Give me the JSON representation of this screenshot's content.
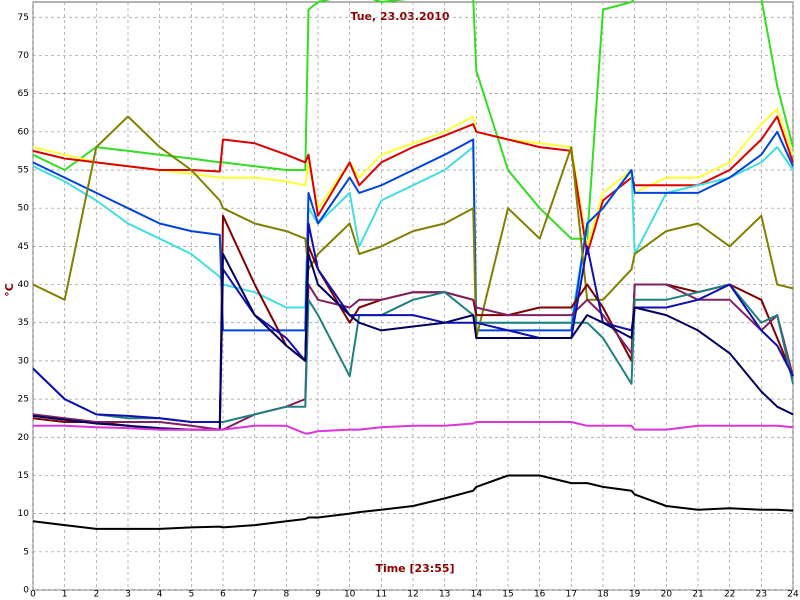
{
  "chart_data": {
    "type": "line",
    "title": "Tue, 23.03.2010",
    "x_label": "Time [23:55]",
    "y_label": "°C",
    "xlim": [
      0,
      24
    ],
    "ylim": [
      0,
      77
    ],
    "grid": true,
    "xticks": [
      0,
      1,
      2,
      3,
      4,
      5,
      6,
      7,
      8,
      9,
      10,
      11,
      12,
      13,
      14,
      15,
      16,
      17,
      18,
      19,
      20,
      21,
      22,
      23,
      24
    ],
    "yticks": [
      0,
      5,
      10,
      15,
      20,
      25,
      30,
      35,
      40,
      45,
      50,
      55,
      60,
      65,
      70,
      75
    ],
    "x": [
      0,
      1,
      2,
      3,
      4,
      5,
      5.9,
      6,
      7,
      8,
      8.6,
      8.7,
      9,
      10,
      10.3,
      11,
      12,
      13,
      13.9,
      14,
      15,
      16,
      17,
      17.5,
      18,
      18.9,
      19,
      20,
      21,
      22,
      23,
      23.5,
      24
    ],
    "series": [
      {
        "color": "#33dd22",
        "values": [
          57,
          55,
          58,
          57.5,
          57,
          56.5,
          56,
          56,
          55.5,
          55,
          55,
          76,
          77,
          78,
          78,
          77,
          77.5,
          77.5,
          77.5,
          68,
          55,
          50,
          46,
          46,
          76,
          77,
          77.5,
          77.5,
          77.5,
          77.5,
          77.5,
          66,
          58
        ]
      },
      {
        "color": "#ffff33",
        "values": [
          58,
          57,
          56,
          55.5,
          55,
          54.5,
          54,
          54,
          54,
          53.5,
          53,
          56,
          50,
          56,
          54,
          57,
          58.5,
          60,
          62,
          60,
          59,
          58.5,
          58,
          45,
          52,
          55,
          52,
          54,
          54,
          56,
          61,
          63,
          57
        ]
      },
      {
        "color": "#dd0000",
        "values": [
          57.5,
          56.5,
          56,
          55.5,
          55,
          55,
          54.8,
          59,
          58.5,
          57,
          56,
          57,
          49,
          56,
          53,
          56,
          58,
          59.5,
          61,
          60,
          59,
          58,
          57.5,
          44,
          51,
          54,
          53,
          53,
          53,
          55,
          59,
          62,
          56
        ]
      },
      {
        "color": "#44dddd",
        "values": [
          55.5,
          53.5,
          51,
          48,
          46,
          44,
          41,
          40,
          39,
          37,
          37,
          50,
          48,
          52,
          45,
          51,
          53,
          55,
          58,
          35,
          35,
          35,
          35,
          48,
          50,
          55,
          44,
          52,
          53,
          54,
          56,
          58,
          55
        ]
      },
      {
        "color": "#0044dd",
        "values": [
          56,
          54,
          52,
          50,
          48,
          47,
          46.5,
          34,
          34,
          34,
          34,
          52,
          48,
          54,
          52,
          53,
          55,
          57,
          59,
          34,
          34,
          34,
          34,
          48,
          50,
          55,
          52,
          52,
          52,
          54,
          57,
          60,
          55.5
        ]
      },
      {
        "color": "#808000",
        "values": [
          40,
          38,
          58,
          62,
          58,
          55,
          51,
          50,
          48,
          47,
          46,
          42,
          44,
          48,
          44,
          45,
          47,
          48,
          50,
          33,
          50,
          46,
          58,
          38,
          38,
          42,
          44,
          47,
          48,
          45,
          49,
          40,
          39.5
        ]
      },
      {
        "color": "#800000",
        "values": [
          22.5,
          22,
          22,
          21.5,
          21,
          21,
          21,
          49,
          40,
          32,
          30,
          45,
          42,
          35,
          37,
          38,
          39,
          39,
          38,
          36,
          36,
          37,
          37,
          40,
          37,
          30,
          40,
          40,
          39,
          40,
          38,
          33,
          28
        ]
      },
      {
        "color": "#802060",
        "values": [
          23,
          22.5,
          22,
          22,
          22,
          21.5,
          21,
          21,
          23,
          24,
          25,
          40,
          38,
          37,
          38,
          38,
          39,
          39,
          38,
          37,
          36,
          36,
          36,
          38,
          36,
          31,
          40,
          40,
          38,
          38,
          34,
          36,
          28
        ]
      },
      {
        "color": "#208080",
        "values": [
          29,
          25,
          23,
          22.5,
          22.5,
          22,
          22,
          22,
          23,
          24,
          24,
          38,
          36,
          28,
          36,
          36,
          38,
          39,
          36,
          35,
          35,
          35,
          35,
          35,
          33,
          27,
          38,
          38,
          39,
          40,
          35,
          36,
          27
        ]
      },
      {
        "color": "#1010b0",
        "values": [
          29,
          25,
          23,
          22.8,
          22.5,
          22,
          22,
          42,
          36,
          33,
          30,
          48,
          42,
          36,
          36,
          36,
          36,
          35,
          35,
          35,
          34,
          33,
          33,
          45,
          35,
          34,
          37,
          37,
          38,
          40,
          34,
          32,
          28
        ]
      },
      {
        "color": "#000060",
        "values": [
          22.8,
          22.3,
          21.8,
          21.5,
          21.2,
          21,
          21,
          44,
          36,
          32,
          30,
          44,
          40,
          36,
          35,
          34,
          34.5,
          35,
          36,
          33,
          33,
          33,
          33,
          36,
          35,
          33,
          37,
          36,
          34,
          31,
          26,
          24,
          23
        ]
      },
      {
        "color": "#dd33dd",
        "values": [
          21.5,
          21.5,
          21.3,
          21.2,
          21,
          21,
          21,
          21,
          21.5,
          21.5,
          20.5,
          20.5,
          20.8,
          21,
          21,
          21.3,
          21.5,
          21.5,
          21.8,
          22,
          22,
          22,
          22,
          21.5,
          21.5,
          21.5,
          21,
          21,
          21.5,
          21.5,
          21.5,
          21.5,
          21.3
        ]
      },
      {
        "color": "#000000",
        "values": [
          9,
          8.5,
          8,
          8,
          8,
          8.2,
          8.3,
          8.2,
          8.5,
          9,
          9.3,
          9.5,
          9.5,
          10,
          10.2,
          10.5,
          11,
          12,
          13,
          13.5,
          15,
          15,
          14,
          14,
          13.5,
          13,
          12.5,
          11,
          10.5,
          10.7,
          10.5,
          10.5,
          10.4
        ]
      }
    ]
  }
}
